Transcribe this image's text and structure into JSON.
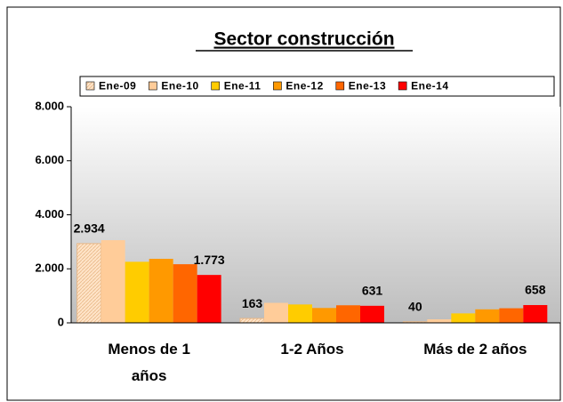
{
  "chart_data": {
    "type": "bar",
    "title": "Sector construcción",
    "categories": [
      "Menos de 1 años",
      "1-2 Años",
      "Más de 2 años"
    ],
    "series": [
      {
        "name": "Ene-09",
        "color": "#ffd9b3",
        "values": [
          2934,
          163,
          40
        ],
        "value_labels": [
          "2.934",
          "163",
          "40"
        ]
      },
      {
        "name": "Ene-10",
        "color": "#ffcc99",
        "values": [
          3060,
          740,
          130
        ]
      },
      {
        "name": "Ene-11",
        "color": "#ffcc00",
        "values": [
          2260,
          680,
          350
        ]
      },
      {
        "name": "Ene-12",
        "color": "#ff9900",
        "values": [
          2370,
          550,
          500
        ]
      },
      {
        "name": "Ene-13",
        "color": "#ff6600",
        "values": [
          2170,
          650,
          540
        ]
      },
      {
        "name": "Ene-14",
        "color": "#ff0000",
        "values": [
          1773,
          631,
          658
        ],
        "value_labels": [
          "1.773",
          "631",
          "658"
        ]
      }
    ],
    "ylim": [
      0,
      8000
    ],
    "yticks": [
      0,
      {
        "value": 2000,
        "label": "2.000"
      },
      {
        "value": 4000,
        "label": "4.000"
      },
      {
        "value": 6000,
        "label": "6.000"
      },
      {
        "value": 8000,
        "label": "8.000"
      }
    ],
    "legend": "top"
  }
}
